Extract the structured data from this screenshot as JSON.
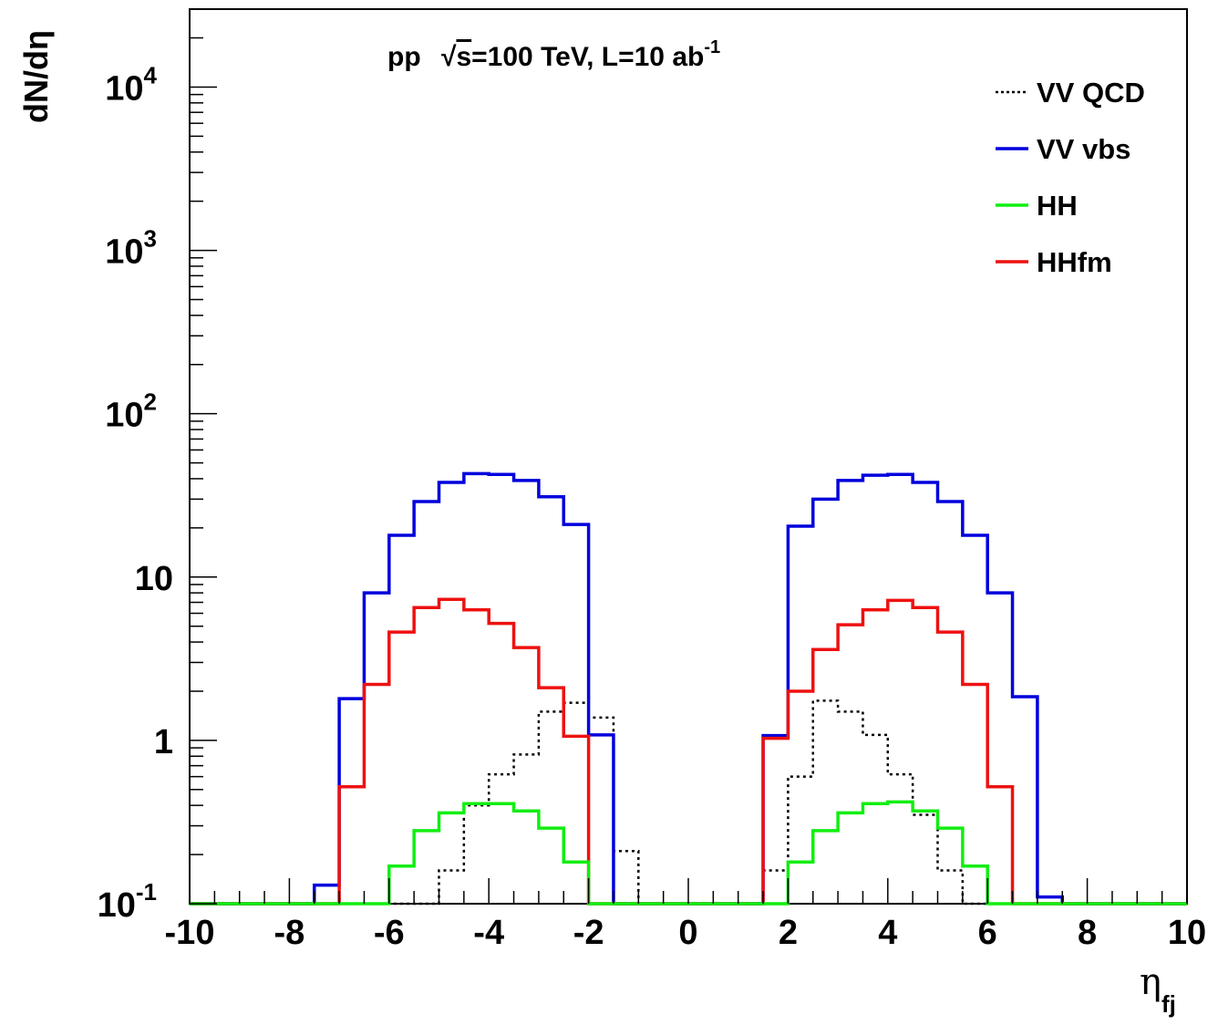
{
  "chart_data": {
    "type": "line",
    "title_prefix": "pp",
    "title_sqrt": "s",
    "title_main": "=100 TeV, L=10 ab",
    "title_exp": "-1",
    "xlabel": "η",
    "xlabel_sub": "fj",
    "ylabel": "dN/dη",
    "xlim": [
      -10,
      10
    ],
    "ylim": [
      0.1,
      30000
    ],
    "y_scale": "log",
    "grid": false,
    "legend_position": "top-right",
    "x_ticks": [
      {
        "value": -10,
        "label": "-10"
      },
      {
        "value": -8,
        "label": "-8"
      },
      {
        "value": -6,
        "label": "-6"
      },
      {
        "value": -4,
        "label": "-4"
      },
      {
        "value": -2,
        "label": "-2"
      },
      {
        "value": 0,
        "label": "0"
      },
      {
        "value": 2,
        "label": "2"
      },
      {
        "value": 4,
        "label": "4"
      },
      {
        "value": 6,
        "label": "6"
      },
      {
        "value": 8,
        "label": "8"
      },
      {
        "value": 10,
        "label": "10"
      }
    ],
    "y_ticks": [
      {
        "value": 0.1,
        "base": "10",
        "exp": "-1"
      },
      {
        "value": 1,
        "base": "1",
        "exp": ""
      },
      {
        "value": 10,
        "base": "10",
        "exp": ""
      },
      {
        "value": 100,
        "base": "10",
        "exp": "2"
      },
      {
        "value": 1000,
        "base": "10",
        "exp": "3"
      },
      {
        "value": 10000,
        "base": "10",
        "exp": "4"
      }
    ],
    "bin_edges": [
      -10,
      -9.5,
      -9,
      -8.5,
      -8,
      -7.5,
      -7,
      -6.5,
      -6,
      -5.5,
      -5,
      -4.5,
      -4,
      -3.5,
      -3,
      -2.5,
      -2,
      -1.5,
      -1,
      -0.5,
      0,
      0.5,
      1,
      1.5,
      2,
      2.5,
      3,
      3.5,
      4,
      4.5,
      5,
      5.5,
      6,
      6.5,
      7,
      7.5,
      8,
      8.5,
      9,
      9.5,
      10
    ],
    "series": [
      {
        "name": "VV QCD",
        "color": "#000000",
        "style": "dotted",
        "values": [
          0.1,
          0.1,
          0.1,
          0.1,
          0.1,
          0.1,
          0.1,
          0.1,
          0.1,
          0.1,
          0.16,
          0.4,
          0.62,
          0.82,
          1.5,
          1.7,
          1.38,
          0.21,
          0.1,
          0.1,
          0.1,
          0.1,
          0.1,
          0.16,
          0.6,
          1.75,
          1.5,
          1.08,
          0.62,
          0.35,
          0.16,
          0.1,
          0.1,
          0.1,
          0.1,
          0.1,
          0.1,
          0.1,
          0.1,
          0.1
        ]
      },
      {
        "name": "VV vbs",
        "color": "#0000dd",
        "style": "solid",
        "values": [
          0.1,
          0.1,
          0.1,
          0.1,
          0.1,
          0.13,
          1.8,
          8.0,
          18.0,
          29.0,
          38.0,
          43.0,
          42.5,
          39.0,
          31.0,
          21.0,
          1.08,
          0.1,
          0.1,
          0.1,
          0.1,
          0.1,
          0.1,
          1.07,
          20.5,
          30.0,
          39.0,
          42.0,
          42.5,
          38.0,
          29.0,
          18.0,
          8.0,
          1.85,
          0.11,
          0.1,
          0.1,
          0.1,
          0.1,
          0.1
        ]
      },
      {
        "name": "HH",
        "color": "#11ee11",
        "style": "solid",
        "values": [
          0.1,
          0.1,
          0.1,
          0.1,
          0.1,
          0.1,
          0.1,
          0.1,
          0.17,
          0.28,
          0.36,
          0.41,
          0.41,
          0.37,
          0.29,
          0.18,
          0.1,
          0.1,
          0.1,
          0.1,
          0.1,
          0.1,
          0.1,
          0.1,
          0.18,
          0.28,
          0.36,
          0.41,
          0.42,
          0.37,
          0.29,
          0.17,
          0.1,
          0.1,
          0.1,
          0.1,
          0.1,
          0.1,
          0.1,
          0.1
        ]
      },
      {
        "name": "HHfm",
        "color": "#ee1111",
        "style": "solid",
        "values": [
          0.1,
          0.1,
          0.1,
          0.1,
          0.1,
          0.1,
          0.52,
          2.2,
          4.6,
          6.5,
          7.3,
          6.3,
          5.2,
          3.7,
          2.1,
          1.06,
          0.1,
          0.1,
          0.1,
          0.1,
          0.1,
          0.1,
          0.1,
          1.03,
          2.0,
          3.6,
          5.1,
          6.3,
          7.2,
          6.5,
          4.6,
          2.2,
          0.52,
          0.1,
          0.1,
          0.1,
          0.1,
          0.1,
          0.1,
          0.1
        ]
      }
    ]
  }
}
